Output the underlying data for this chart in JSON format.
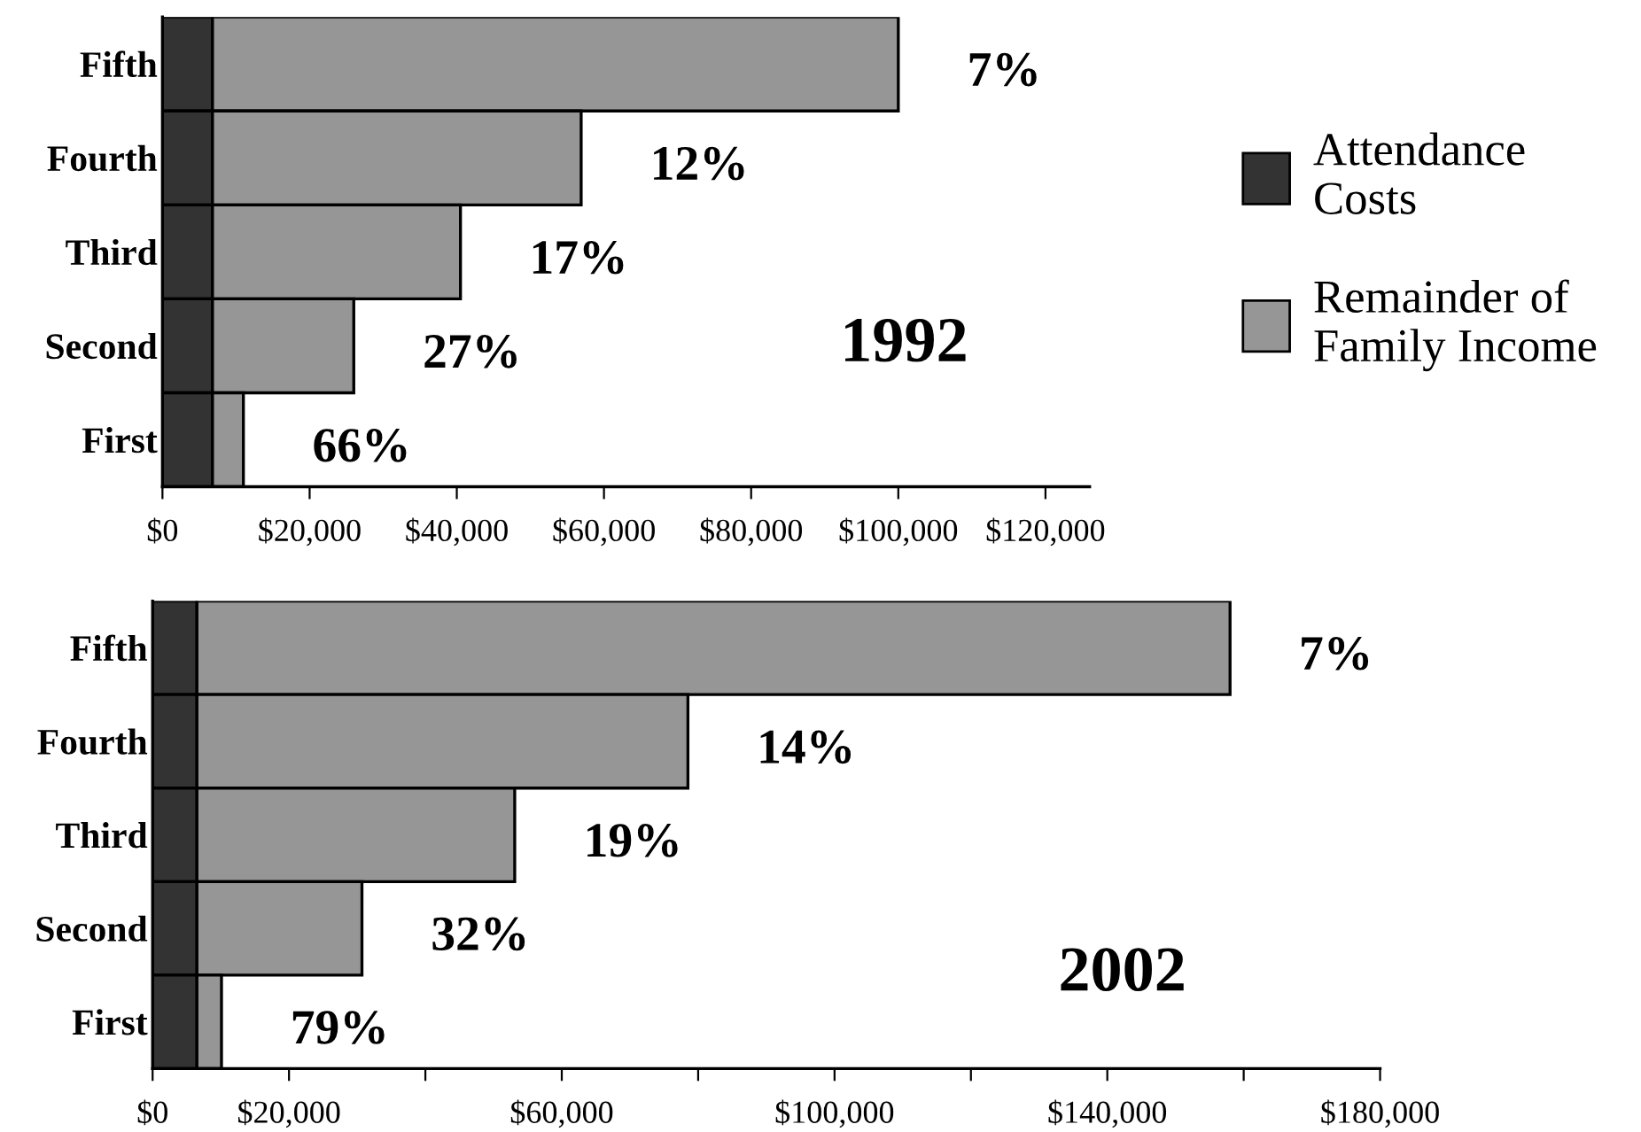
{
  "chart_data": [
    {
      "type": "bar",
      "orientation": "horizontal",
      "stacked": true,
      "categories": [
        "Fifth",
        "Fourth",
        "Third",
        "Second",
        "First"
      ],
      "series": [
        {
          "name": "Attendance Costs",
          "color": "#333333",
          "values": [
            6800,
            6800,
            6800,
            6800,
            6800
          ]
        },
        {
          "name": "Remainder of Family Income",
          "color": "#969696",
          "values": [
            93200,
            50100,
            33700,
            19200,
            4200
          ]
        }
      ],
      "xlim": [
        0,
        126000
      ],
      "xticks": [
        {
          "value": 0,
          "label": "$0"
        },
        {
          "value": 20000,
          "label": "$20,000"
        },
        {
          "value": 40000,
          "label": "$40,000"
        },
        {
          "value": 60000,
          "label": "$60,000"
        },
        {
          "value": 80000,
          "label": "$80,000"
        },
        {
          "value": 100000,
          "label": "$100,000"
        },
        {
          "value": 120000,
          "label": "$120,000"
        }
      ],
      "annotations": [
        {
          "text": "7%",
          "x": 100000,
          "y": "Fifth"
        },
        {
          "text": "12%",
          "x": 56900,
          "y": "Fourth"
        },
        {
          "text": "17%",
          "x": 40500,
          "y": "Third"
        },
        {
          "text": "27%",
          "x": 26000,
          "y": "Second"
        },
        {
          "text": "66%",
          "x": 11000,
          "y": "First"
        },
        "1992"
      ],
      "legend": "right",
      "grid": false
    },
    {
      "type": "bar",
      "orientation": "horizontal",
      "stacked": true,
      "categories": [
        "Fifth",
        "Fourth",
        "Third",
        "Second",
        "First"
      ],
      "series": [
        {
          "color": "#333333",
          "values": [
            6500,
            6500,
            6500,
            6500,
            6500
          ]
        },
        {
          "color": "#969696",
          "values": [
            151500,
            72000,
            46600,
            24200,
            3600
          ]
        }
      ],
      "xlim": [
        0,
        180000
      ],
      "xticks": [
        {
          "value": 0,
          "label": "$0"
        },
        {
          "value": 20000,
          "label": "$20,000"
        },
        {
          "value": 40000,
          "label": null
        },
        {
          "value": 60000,
          "label": "$60,000"
        },
        {
          "value": 80000,
          "label": null
        },
        {
          "value": 100000,
          "label": "$100,000"
        },
        {
          "value": 120000,
          "label": null
        },
        {
          "value": 140000,
          "label": "$140,000"
        },
        {
          "value": 160000,
          "label": null
        },
        {
          "value": 180000,
          "label": "$180,000"
        }
      ],
      "annotations": [
        {
          "text": "7%",
          "x": 158000,
          "y": "Fifth"
        },
        {
          "text": "14%",
          "x": 78500,
          "y": "Fourth"
        },
        {
          "text": "19%",
          "x": 53100,
          "y": "Third"
        },
        {
          "text": "32%",
          "x": 30700,
          "y": "Second"
        },
        {
          "text": "79%",
          "x": 10100,
          "y": "First"
        },
        "2002"
      ],
      "grid": false
    }
  ]
}
